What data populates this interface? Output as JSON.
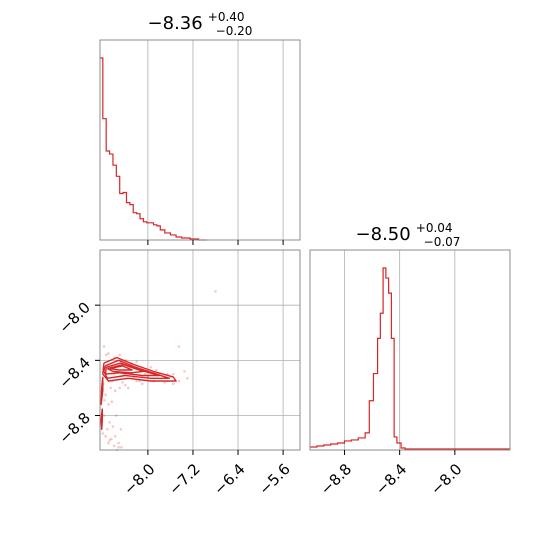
{
  "chart_data": [
    {
      "type": "histogram",
      "panel": "top-left",
      "title": {
        "median": "−8.36",
        "upper": "+0.40",
        "lower": "−0.20"
      },
      "xlim": [
        -8.85,
        -5.3
      ],
      "grid": true,
      "color": "#d62728",
      "x_ticks": [
        -8.0,
        -7.2,
        -6.4,
        -5.6
      ],
      "bins": {
        "edges": [
          -8.85,
          -8.8,
          -8.74,
          -8.68,
          -8.62,
          -8.56,
          -8.5,
          -8.44,
          -8.38,
          -8.32,
          -8.26,
          -8.2,
          -8.14,
          -8.08,
          -8.02,
          -7.96,
          -7.9,
          -7.84,
          -7.78,
          -7.7,
          -7.6,
          -7.5,
          -7.4,
          -7.25,
          -7.1,
          -6.95
        ],
        "counts": [
          180,
          120,
          88,
          85,
          74,
          63,
          46,
          47,
          37,
          35,
          27,
          26,
          21,
          18,
          17,
          17,
          15,
          14,
          10,
          7,
          5,
          3,
          2,
          1,
          0
        ]
      }
    },
    {
      "type": "scatter",
      "panel": "bottom-left",
      "xlim": [
        -8.85,
        -5.3
      ],
      "ylim": [
        -9.05,
        -7.6
      ],
      "x_ticks": [
        -8.0,
        -7.2,
        -6.4,
        -5.6
      ],
      "y_ticks": [
        -8.0,
        -8.4,
        -8.8
      ],
      "x_tick_labels": [
        "−8.0",
        "−7.2",
        "−6.4",
        "−5.6"
      ],
      "y_tick_labels": [
        "−8.0",
        "−8.4",
        "−8.8"
      ],
      "grid": true,
      "color": "#d62728",
      "contours": [
        [
          [
            -8.78,
            -8.42
          ],
          [
            -8.55,
            -8.38
          ],
          [
            -8.25,
            -8.43
          ],
          [
            -7.9,
            -8.48
          ],
          [
            -7.55,
            -8.52
          ],
          [
            -7.5,
            -8.55
          ],
          [
            -7.95,
            -8.55
          ],
          [
            -8.35,
            -8.53
          ],
          [
            -8.7,
            -8.55
          ],
          [
            -8.8,
            -8.5
          ],
          [
            -8.78,
            -8.42
          ]
        ],
        [
          [
            -8.76,
            -8.44
          ],
          [
            -8.52,
            -8.4
          ],
          [
            -8.22,
            -8.45
          ],
          [
            -7.85,
            -8.5
          ],
          [
            -7.62,
            -8.53
          ],
          [
            -7.95,
            -8.53
          ],
          [
            -8.4,
            -8.51
          ],
          [
            -8.72,
            -8.53
          ],
          [
            -8.78,
            -8.48
          ],
          [
            -8.76,
            -8.44
          ]
        ],
        [
          [
            -8.74,
            -8.45
          ],
          [
            -8.48,
            -8.42
          ],
          [
            -8.15,
            -8.47
          ],
          [
            -7.8,
            -8.51
          ],
          [
            -8.1,
            -8.51
          ],
          [
            -8.5,
            -8.49
          ],
          [
            -8.75,
            -8.5
          ],
          [
            -8.74,
            -8.45
          ]
        ],
        [
          [
            -8.72,
            -8.46
          ],
          [
            -8.44,
            -8.43
          ],
          [
            -8.08,
            -8.48
          ],
          [
            -8.3,
            -8.49
          ],
          [
            -8.62,
            -8.48
          ],
          [
            -8.72,
            -8.46
          ]
        ],
        [
          [
            -8.68,
            -8.46
          ],
          [
            -8.45,
            -8.44
          ],
          [
            -8.28,
            -8.47
          ],
          [
            -8.52,
            -8.47
          ],
          [
            -8.68,
            -8.46
          ]
        ],
        [
          [
            -8.8,
            -8.52
          ],
          [
            -8.8,
            -8.62
          ],
          [
            -8.83,
            -8.72
          ],
          [
            -8.82,
            -8.6
          ],
          [
            -8.8,
            -8.52
          ]
        ],
        [
          [
            -8.81,
            -8.75
          ],
          [
            -8.83,
            -8.83
          ],
          [
            -8.82,
            -8.9
          ],
          [
            -8.81,
            -8.83
          ],
          [
            -8.81,
            -8.75
          ]
        ]
      ],
      "points": [
        [
          -6.8,
          -7.9
        ],
        [
          -7.9,
          -8.55
        ],
        [
          -7.7,
          -8.56
        ],
        [
          -7.6,
          -8.52
        ],
        [
          -7.45,
          -8.55
        ],
        [
          -7.55,
          -8.57
        ],
        [
          -8.2,
          -8.55
        ],
        [
          -8.4,
          -8.58
        ],
        [
          -8.0,
          -8.52
        ],
        [
          -8.1,
          -8.57
        ],
        [
          -7.8,
          -8.5
        ],
        [
          -7.45,
          -8.3
        ],
        [
          -7.3,
          -8.53
        ],
        [
          -7.35,
          -8.48
        ],
        [
          -8.75,
          -8.95
        ],
        [
          -8.7,
          -9.0
        ],
        [
          -8.65,
          -8.97
        ],
        [
          -8.6,
          -9.02
        ],
        [
          -8.58,
          -8.95
        ],
        [
          -8.52,
          -9.0
        ],
        [
          -8.47,
          -9.03
        ],
        [
          -8.72,
          -8.9
        ],
        [
          -8.8,
          -8.93
        ],
        [
          -8.55,
          -9.05
        ],
        [
          -8.68,
          -8.85
        ],
        [
          -8.62,
          -8.88
        ],
        [
          -8.75,
          -8.65
        ],
        [
          -8.7,
          -8.72
        ],
        [
          -8.78,
          -8.8
        ],
        [
          -8.82,
          -8.85
        ],
        [
          -8.66,
          -8.6
        ],
        [
          -8.58,
          -8.62
        ],
        [
          -8.6,
          -8.5
        ],
        [
          -8.5,
          -8.6
        ],
        [
          -8.45,
          -8.56
        ],
        [
          -8.35,
          -8.6
        ],
        [
          -8.25,
          -8.52
        ],
        [
          -8.15,
          -8.55
        ],
        [
          -7.95,
          -8.45
        ],
        [
          -7.85,
          -8.47
        ],
        [
          -8.7,
          -8.35
        ],
        [
          -8.6,
          -8.38
        ],
        [
          -8.5,
          -8.36
        ],
        [
          -8.4,
          -8.4
        ],
        [
          -8.3,
          -8.42
        ],
        [
          -8.2,
          -8.41
        ],
        [
          -7.65,
          -8.5
        ],
        [
          -7.55,
          -8.5
        ],
        [
          -8.05,
          -8.5
        ],
        [
          -8.82,
          -8.62
        ],
        [
          -8.84,
          -8.7
        ],
        [
          -8.78,
          -8.3
        ],
        [
          -8.74,
          -8.36
        ],
        [
          -8.64,
          -8.7
        ],
        [
          -8.56,
          -8.8
        ],
        [
          -8.48,
          -8.9
        ],
        [
          -8.68,
          -8.98
        ],
        [
          -8.52,
          -9.03
        ],
        [
          -8.79,
          -8.57
        ],
        [
          -8.77,
          -8.69
        ],
        [
          -8.63,
          -8.55
        ],
        [
          -8.43,
          -8.5
        ]
      ]
    },
    {
      "type": "histogram",
      "panel": "bottom-right",
      "title": {
        "median": "−8.50",
        "upper": "+0.04",
        "lower": "−0.07"
      },
      "xlim": [
        -9.05,
        -7.6
      ],
      "x_ticks": [
        -8.8,
        -8.4,
        -8.0
      ],
      "x_tick_labels": [
        "−8.8",
        "−8.4",
        "−8.0"
      ],
      "grid": true,
      "color": "#d62728",
      "bins": {
        "edges": [
          -9.05,
          -9.0,
          -8.95,
          -8.9,
          -8.85,
          -8.8,
          -8.75,
          -8.7,
          -8.65,
          -8.62,
          -8.59,
          -8.56,
          -8.54,
          -8.52,
          -8.5,
          -8.48,
          -8.46,
          -8.44,
          -8.42,
          -8.39,
          -8.36,
          -8.3,
          -8.2,
          -8.0,
          -7.6
        ],
        "counts": [
          2,
          3,
          4,
          5,
          6,
          8,
          9,
          11,
          16,
          48,
          75,
          110,
          135,
          180,
          170,
          155,
          110,
          12,
          6,
          1,
          0,
          0,
          0,
          0
        ]
      }
    }
  ]
}
